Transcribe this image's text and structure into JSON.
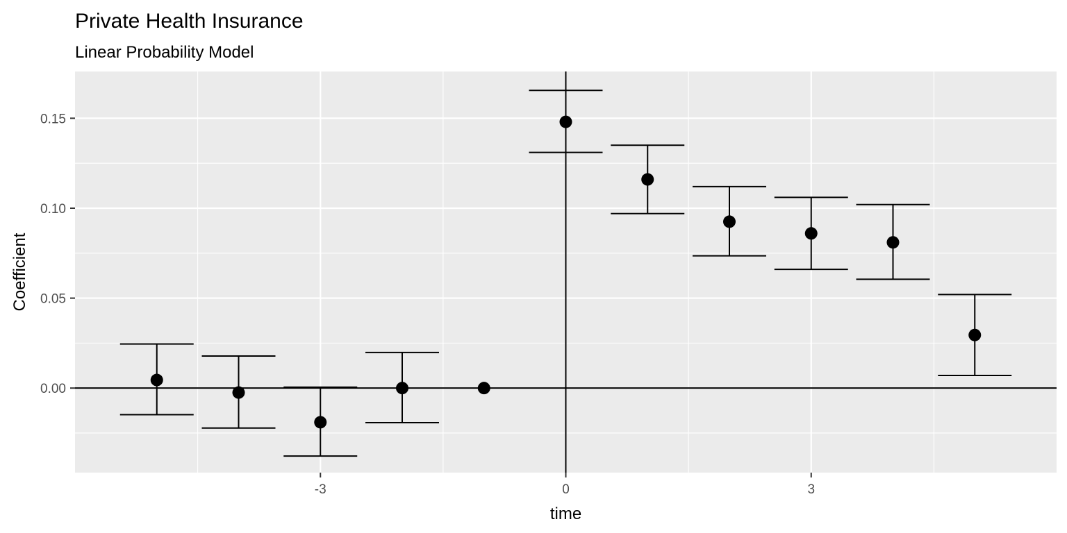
{
  "chart_data": {
    "type": "scatter",
    "title": "Private Health Insurance",
    "subtitle": "Linear Probability Model",
    "xlabel": "time",
    "ylabel": "Coefficient",
    "xlim": [
      -6,
      6
    ],
    "ylim": [
      -0.047,
      0.176
    ],
    "x_ticks": [
      -3,
      0,
      3
    ],
    "x_tick_labels": [
      "-3",
      "0",
      "3"
    ],
    "y_ticks": [
      0.0,
      0.05,
      0.1,
      0.15
    ],
    "y_tick_labels": [
      "0.00",
      "0.05",
      "0.10",
      "0.15"
    ],
    "grid": true,
    "background": "#ebebeb",
    "grid_color": "#ffffff",
    "mark_color": "#000000",
    "reference_lines": {
      "h": 0,
      "v": 0
    },
    "points": [
      {
        "x": -5,
        "y": 0.0045,
        "lower": -0.0148,
        "upper": 0.0245
      },
      {
        "x": -4,
        "y": -0.0025,
        "lower": -0.0222,
        "upper": 0.0178
      },
      {
        "x": -3,
        "y": -0.019,
        "lower": -0.0378,
        "upper": 0.0005
      },
      {
        "x": -2,
        "y": 0.0,
        "lower": -0.0192,
        "upper": 0.0198
      },
      {
        "x": -1,
        "y": 0.0
      },
      {
        "x": 0,
        "y": 0.148,
        "lower": 0.131,
        "upper": 0.1655
      },
      {
        "x": 1,
        "y": 0.116,
        "lower": 0.097,
        "upper": 0.135
      },
      {
        "x": 2,
        "y": 0.0925,
        "lower": 0.0735,
        "upper": 0.112
      },
      {
        "x": 3,
        "y": 0.086,
        "lower": 0.066,
        "upper": 0.106
      },
      {
        "x": 4,
        "y": 0.081,
        "lower": 0.0605,
        "upper": 0.102
      },
      {
        "x": 5,
        "y": 0.0295,
        "lower": 0.007,
        "upper": 0.052
      }
    ]
  }
}
